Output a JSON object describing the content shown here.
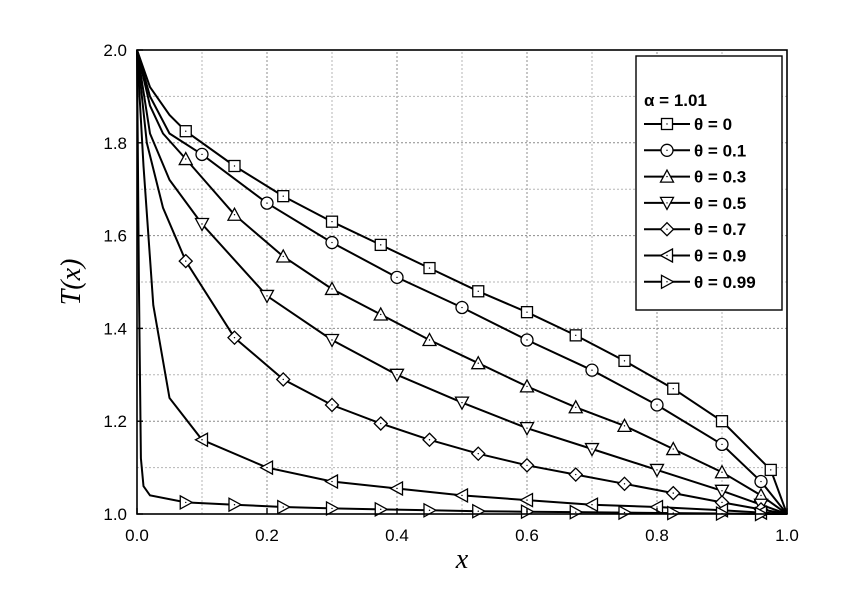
{
  "chart_data": {
    "type": "line",
    "xlabel": "x",
    "ylabel": "T(x)",
    "xlim": [
      0.0,
      1.0
    ],
    "ylim": [
      1.0,
      2.0
    ],
    "x_ticks": [
      "0.0",
      "0.2",
      "0.4",
      "0.6",
      "0.8",
      "1.0"
    ],
    "y_ticks": [
      "1.0",
      "1.2",
      "1.4",
      "1.6",
      "1.8",
      "2.0"
    ],
    "grid": true,
    "legend_position": "top-right",
    "legend_title": "α = 1.01",
    "series": [
      {
        "name": "θ = 0",
        "marker": "square",
        "x": [
          0,
          0.02,
          0.05,
          0.075,
          0.15,
          0.225,
          0.3,
          0.375,
          0.45,
          0.525,
          0.6,
          0.675,
          0.75,
          0.825,
          0.9,
          0.975,
          1.0
        ],
        "y": [
          2.0,
          1.92,
          1.86,
          1.825,
          1.75,
          1.685,
          1.63,
          1.58,
          1.53,
          1.48,
          1.435,
          1.385,
          1.33,
          1.27,
          1.2,
          1.095,
          1.0
        ]
      },
      {
        "name": "θ = 0.1",
        "marker": "circle",
        "x": [
          0,
          0.02,
          0.05,
          0.1,
          0.2,
          0.3,
          0.4,
          0.5,
          0.6,
          0.7,
          0.8,
          0.9,
          0.96,
          1.0
        ],
        "y": [
          2.0,
          1.9,
          1.82,
          1.775,
          1.67,
          1.585,
          1.51,
          1.445,
          1.375,
          1.31,
          1.235,
          1.15,
          1.07,
          1.0
        ]
      },
      {
        "name": "θ = 0.3",
        "marker": "triangle-up",
        "x": [
          0,
          0.02,
          0.04,
          0.075,
          0.15,
          0.225,
          0.3,
          0.375,
          0.45,
          0.525,
          0.6,
          0.675,
          0.75,
          0.825,
          0.9,
          0.96,
          1.0
        ],
        "y": [
          2.0,
          1.88,
          1.82,
          1.765,
          1.645,
          1.555,
          1.485,
          1.43,
          1.375,
          1.325,
          1.275,
          1.23,
          1.19,
          1.14,
          1.09,
          1.04,
          1.0
        ]
      },
      {
        "name": "θ = 0.5",
        "marker": "triangle-down",
        "x": [
          0,
          0.02,
          0.05,
          0.1,
          0.2,
          0.3,
          0.4,
          0.5,
          0.6,
          0.7,
          0.8,
          0.9,
          0.96,
          1.0
        ],
        "y": [
          2.0,
          1.82,
          1.72,
          1.625,
          1.47,
          1.375,
          1.3,
          1.24,
          1.185,
          1.14,
          1.095,
          1.05,
          1.02,
          1.0
        ]
      },
      {
        "name": "θ = 0.7",
        "marker": "diamond",
        "x": [
          0,
          0.015,
          0.04,
          0.075,
          0.15,
          0.225,
          0.3,
          0.375,
          0.45,
          0.525,
          0.6,
          0.675,
          0.75,
          0.825,
          0.9,
          0.96,
          1.0
        ],
        "y": [
          2.0,
          1.8,
          1.66,
          1.545,
          1.38,
          1.29,
          1.235,
          1.195,
          1.16,
          1.13,
          1.105,
          1.085,
          1.065,
          1.045,
          1.025,
          1.01,
          1.0
        ]
      },
      {
        "name": "θ = 0.9",
        "marker": "triangle-left",
        "x": [
          0,
          0.01,
          0.025,
          0.05,
          0.1,
          0.2,
          0.3,
          0.4,
          0.5,
          0.6,
          0.7,
          0.8,
          0.9,
          0.96,
          1.0
        ],
        "y": [
          2.0,
          1.75,
          1.45,
          1.25,
          1.16,
          1.1,
          1.07,
          1.055,
          1.04,
          1.03,
          1.02,
          1.015,
          1.008,
          1.003,
          1.0
        ]
      },
      {
        "name": "θ = 0.99",
        "marker": "triangle-right",
        "x": [
          0,
          0.003,
          0.006,
          0.01,
          0.02,
          0.075,
          0.15,
          0.225,
          0.3,
          0.375,
          0.45,
          0.525,
          0.6,
          0.675,
          0.75,
          0.825,
          0.9,
          0.96,
          1.0
        ],
        "y": [
          2.0,
          1.5,
          1.12,
          1.06,
          1.04,
          1.025,
          1.02,
          1.015,
          1.012,
          1.01,
          1.008,
          1.006,
          1.005,
          1.004,
          1.003,
          1.002,
          1.001,
          1.0,
          1.0
        ]
      }
    ]
  }
}
